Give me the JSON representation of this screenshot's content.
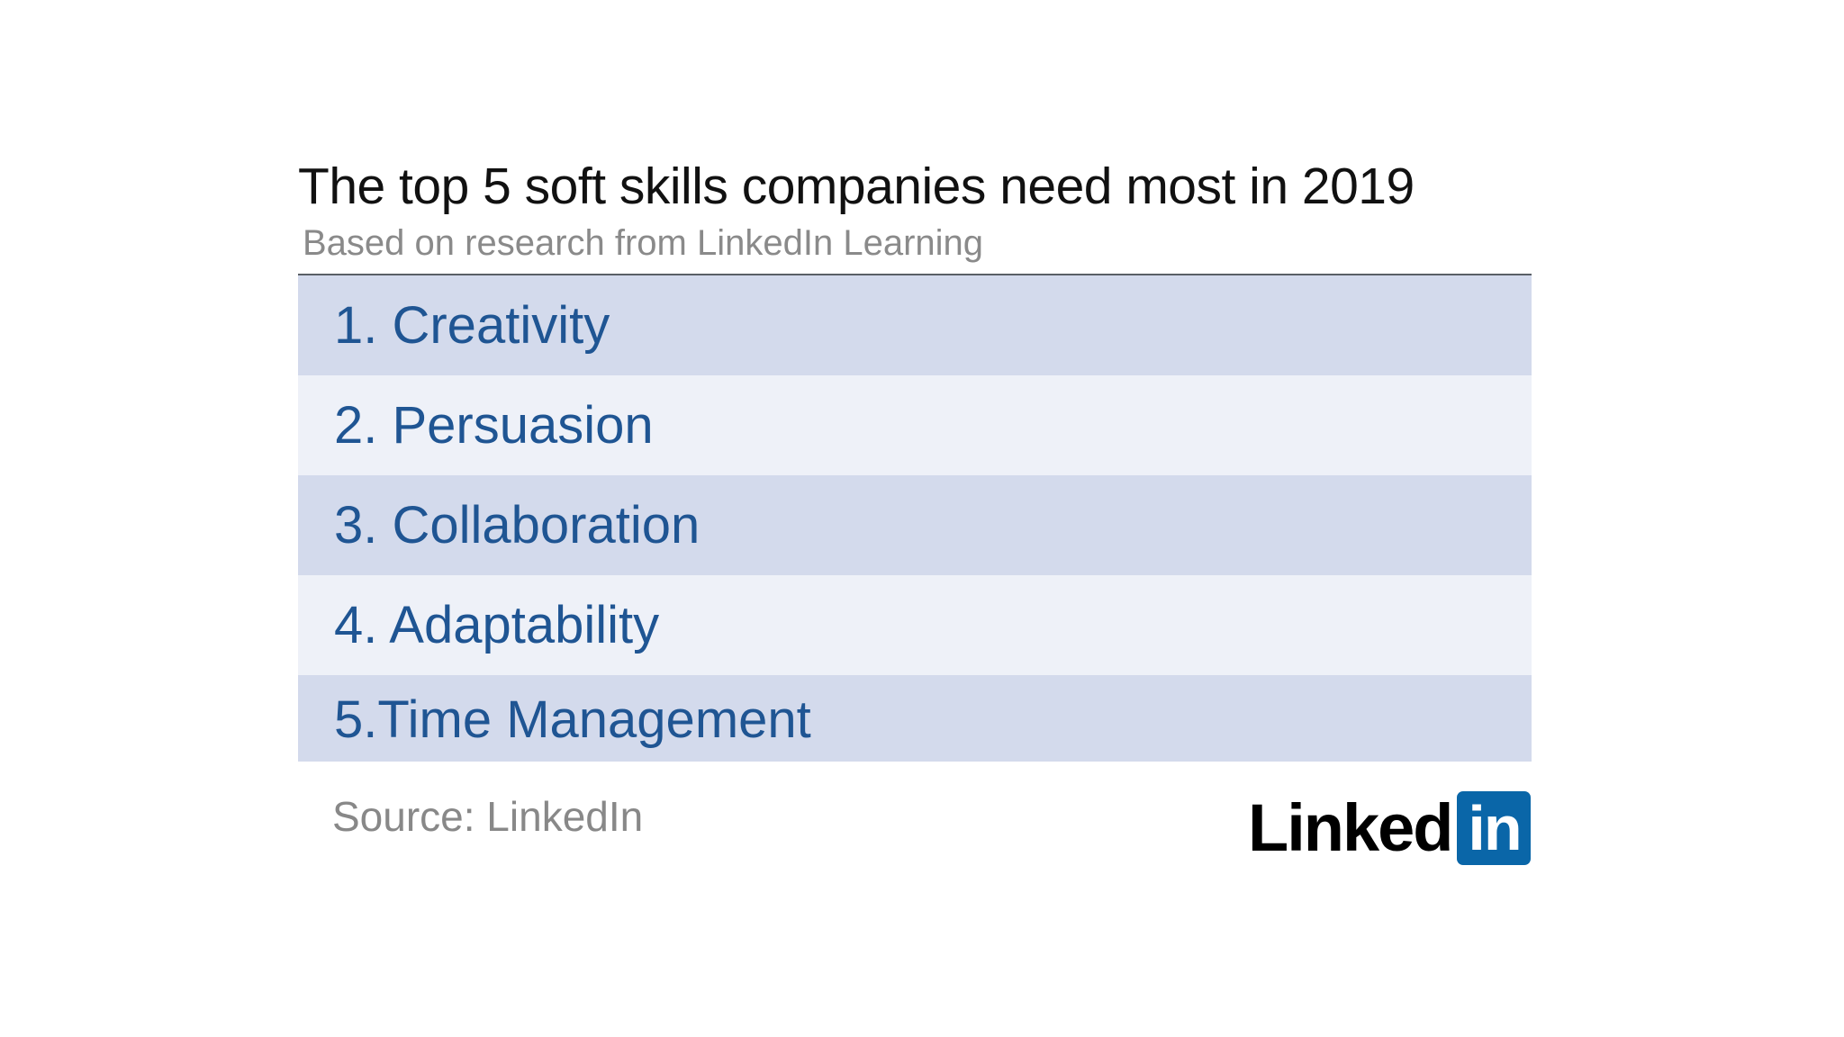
{
  "header": {
    "title": "The top 5 soft skills companies need most in 2019",
    "subtitle": "Based on research from LinkedIn Learning"
  },
  "skills": [
    {
      "label": "1. Creativity"
    },
    {
      "label": "2. Persuasion"
    },
    {
      "label": "3. Collaboration"
    },
    {
      "label": "4. Adaptability"
    },
    {
      "label": "5.Time Management"
    }
  ],
  "footer": {
    "source": "Source: LinkedIn",
    "logo_word": "Linked",
    "logo_badge": "in"
  },
  "colors": {
    "accent_text": "#1f5593",
    "row_dark": "#d3daec",
    "row_light": "#eef1f8",
    "logo_blue": "#0a66a8"
  }
}
